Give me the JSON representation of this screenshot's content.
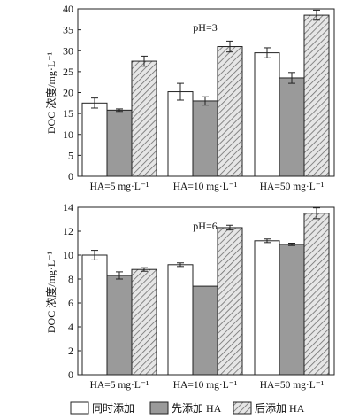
{
  "legend": {
    "items": [
      {
        "label": "同时添加",
        "pattern": "white"
      },
      {
        "label": "先添加 HA",
        "pattern": "gray"
      },
      {
        "label": "后添加 HA",
        "pattern": "hatch"
      }
    ]
  },
  "colors": {
    "white_fill": "#ffffff",
    "gray_fill": "#9a9a9a",
    "hatch_bg": "#e6e6e6",
    "hatch_line": "#6e6e6e",
    "stroke": "#222222"
  },
  "chart_data": [
    {
      "type": "bar",
      "annotation": "pH=3",
      "ylabel": "DOC 浓度/mg·L⁻¹",
      "categories": [
        "HA=5 mg·L⁻¹",
        "HA=10 mg·L⁻¹",
        "HA=50 mg·L⁻¹"
      ],
      "ylim": [
        0,
        40
      ],
      "yticks": [
        0,
        5,
        10,
        15,
        20,
        25,
        30,
        35,
        40
      ],
      "series": [
        {
          "name": "同时添加",
          "values": [
            17.5,
            20.2,
            29.5
          ],
          "errors": [
            1.2,
            2.0,
            1.2
          ]
        },
        {
          "name": "先添加 HA",
          "values": [
            15.8,
            18.0,
            23.5
          ],
          "errors": [
            0.3,
            1.0,
            1.3
          ]
        },
        {
          "name": "后添加 HA",
          "values": [
            27.5,
            31.0,
            38.5
          ],
          "errors": [
            1.2,
            1.3,
            1.2
          ]
        }
      ]
    },
    {
      "type": "bar",
      "annotation": "pH=6",
      "ylabel": "DOC 浓度/mg·L⁻¹",
      "categories": [
        "HA=5 mg·L⁻¹",
        "HA=10 mg·L⁻¹",
        "HA=50 mg·L⁻¹"
      ],
      "ylim": [
        0,
        14
      ],
      "yticks": [
        0,
        2,
        4,
        6,
        8,
        10,
        12,
        14
      ],
      "series": [
        {
          "name": "同时添加",
          "values": [
            10.0,
            9.2,
            11.2
          ],
          "errors": [
            0.4,
            0.15,
            0.15
          ]
        },
        {
          "name": "先添加 HA",
          "values": [
            8.3,
            7.4,
            10.9
          ],
          "errors": [
            0.3,
            0.0,
            0.1
          ]
        },
        {
          "name": "后添加 HA",
          "values": [
            8.8,
            12.3,
            13.5
          ],
          "errors": [
            0.15,
            0.2,
            0.45
          ]
        }
      ]
    }
  ]
}
